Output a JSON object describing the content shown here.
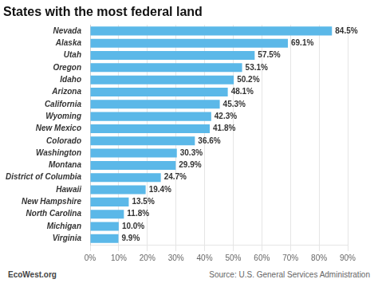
{
  "chart_data": {
    "type": "bar",
    "orientation": "horizontal",
    "title": "States with the most federal land",
    "categories": [
      "Nevada",
      "Alaska",
      "Utah",
      "Oregon",
      "Idaho",
      "Arizona",
      "California",
      "Wyoming",
      "New Mexico",
      "Colorado",
      "Washington",
      "Montana",
      "District of Columbia",
      "Hawaii",
      "New Hampshire",
      "North Carolina",
      "Michigan",
      "Virginia"
    ],
    "values": [
      84.5,
      69.1,
      57.5,
      53.1,
      50.2,
      48.1,
      45.3,
      42.3,
      41.8,
      36.6,
      30.3,
      29.9,
      24.7,
      19.4,
      13.5,
      11.8,
      10.0,
      9.9
    ],
    "value_labels": [
      "84.5%",
      "69.1%",
      "57.5%",
      "53.1%",
      "50.2%",
      "48.1%",
      "45.3%",
      "42.3%",
      "41.8%",
      "36.6%",
      "30.3%",
      "29.9%",
      "24.7%",
      "19.4%",
      "13.5%",
      "11.8%",
      "10.0%",
      "9.9%"
    ],
    "data_labels": true,
    "color": "#5bb8e8",
    "xlim": [
      0,
      90
    ],
    "xticks": [
      {
        "value": 0,
        "label": "0%"
      },
      {
        "value": 10,
        "label": "10%"
      },
      {
        "value": 20,
        "label": "20%"
      },
      {
        "value": 30,
        "label": "30%"
      },
      {
        "value": 40,
        "label": "40%"
      },
      {
        "value": 50,
        "label": "50%"
      },
      {
        "value": 60,
        "label": "60%"
      },
      {
        "value": 70,
        "label": "70%"
      },
      {
        "value": 80,
        "label": "80%"
      },
      {
        "value": 90,
        "label": "90%"
      }
    ],
    "grid": true,
    "annotations": [
      "EcoWest.org",
      "Source: U.S. General Services Administration"
    ]
  }
}
